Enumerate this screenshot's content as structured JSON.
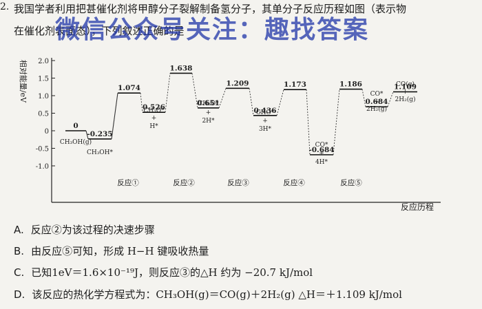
{
  "question": {
    "number": "2.",
    "line1": "我国学者利用把甚催化剂将甲醇分子裂解制备氢分子，其单分子反应历程如图（表示物",
    "line2": "在催化剂表面态），下列叙述正确的是"
  },
  "watermark": "微信公众号关注：趣找答案",
  "chart_data": {
    "type": "line",
    "ylabel": "相对能量/eV",
    "xlabel": "反应历程",
    "ylim": [
      -1.0,
      2.0
    ],
    "yticks": [
      "2.0",
      "1.5",
      "1.0",
      "0.5",
      "0",
      "-0.5",
      "-1.0"
    ],
    "levels": [
      {
        "value": 0,
        "label": "0",
        "species": [
          "CH₃OH(g)"
        ]
      },
      {
        "value": -0.235,
        "label": "-0.235",
        "species": [
          "CH₃OH*"
        ]
      },
      {
        "value": 1.074,
        "label": "1.074",
        "species": []
      },
      {
        "value": 0.526,
        "label": "0.526",
        "species": [
          "CH₃O*",
          "+",
          "H*"
        ]
      },
      {
        "value": 1.638,
        "label": "1.638",
        "species": []
      },
      {
        "value": 0.651,
        "label": "0.651",
        "species": [
          "CH₂O*",
          "+",
          "2H*"
        ]
      },
      {
        "value": 1.209,
        "label": "1.209",
        "species": []
      },
      {
        "value": 0.436,
        "label": "0.436",
        "species": [
          "CHO*",
          "+",
          "3H*"
        ]
      },
      {
        "value": 1.173,
        "label": "1.173",
        "species": []
      },
      {
        "value": -0.684,
        "label": "-0.684",
        "species": [
          "CO*",
          "+",
          "4H*"
        ]
      },
      {
        "value": 1.186,
        "label": "1.186",
        "species": []
      },
      {
        "value": 0.684,
        "label": "0.684",
        "species": [
          "CO*",
          "+",
          "2H₂(g)"
        ]
      },
      {
        "value": 1.109,
        "label": "1.109",
        "species": [
          "CO(g)",
          "+",
          "2H₂(g)"
        ]
      }
    ],
    "reactions": [
      "反应①",
      "反应②",
      "反应③",
      "反应④",
      "反应⑤"
    ]
  },
  "options": [
    {
      "label": "A.",
      "text": "反应②为该过程的决速步骤"
    },
    {
      "label": "B.",
      "text": "由反应⑤可知，形成 H−H 键吸收热量"
    },
    {
      "label": "C.",
      "text": "已知1eV＝1.6×10⁻¹⁹J，则反应③的△H 约为 −20.7 kJ/mol"
    },
    {
      "label": "D.",
      "text": "该反应的热化学方程式为：CH₃OH(g)＝CO(g)＋2H₂(g)  △H＝＋1.109 kJ/mol"
    }
  ]
}
